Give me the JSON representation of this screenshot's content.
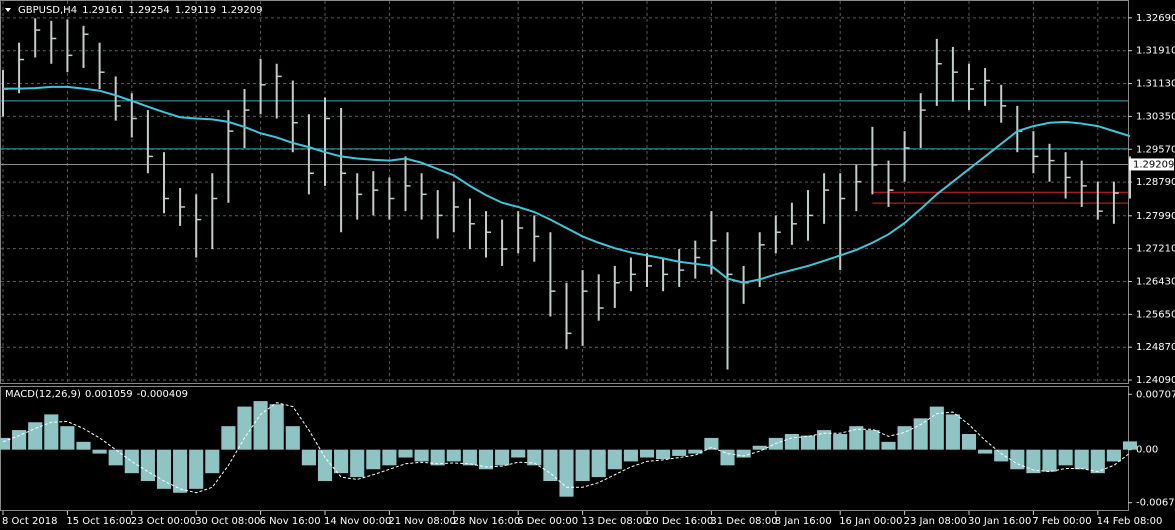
{
  "chart_data": [
    {
      "type": "ohlc",
      "title": "GBPUSD,H4",
      "ohlc": [
        1.29161,
        1.29254,
        1.29119,
        1.29209
      ],
      "categories": [
        "8 Oct 2018",
        null,
        null,
        null,
        "15 Oct 16:00",
        null,
        null,
        null,
        "23 Oct 00:00",
        null,
        null,
        null,
        "30 Oct 08:00",
        null,
        null,
        null,
        "6 Nov 16:00",
        null,
        null,
        null,
        "14 Nov 00:00",
        null,
        null,
        null,
        "21 Nov 08:00",
        null,
        null,
        null,
        "28 Nov 16:00",
        null,
        null,
        null,
        "6 Dec 00:00",
        null,
        null,
        null,
        "13 Dec 08:00",
        null,
        null,
        null,
        "20 Dec 16:00",
        null,
        null,
        null,
        "31 Dec 08:00",
        null,
        null,
        null,
        "8 Jan 16:00",
        null,
        null,
        null,
        "16 Jan 00:00",
        null,
        null,
        null,
        "23 Jan 08:00",
        null,
        null,
        null,
        "30 Jan 16:00",
        null,
        null,
        null,
        "7 Feb 00:00",
        null,
        null,
        null,
        "14 Feb 08:00",
        null,
        null
      ],
      "high": [
        1.3145,
        1.321,
        1.3268,
        1.3262,
        1.3265,
        1.325,
        1.321,
        1.313,
        1.309,
        1.305,
        1.295,
        1.2865,
        1.285,
        1.29,
        1.305,
        1.31,
        1.3172,
        1.316,
        1.312,
        1.304,
        1.308,
        1.3055,
        1.29,
        1.2905,
        1.289,
        1.294,
        1.29,
        1.286,
        1.288,
        1.284,
        1.281,
        1.279,
        1.281,
        1.28,
        1.276,
        1.264,
        1.267,
        1.266,
        1.268,
        1.27,
        1.271,
        1.27,
        1.272,
        1.274,
        1.281,
        1.276,
        1.268,
        1.276,
        1.28,
        1.283,
        1.286,
        1.29,
        1.29,
        1.292,
        1.301,
        1.293,
        1.3,
        1.309,
        1.3219,
        1.32,
        1.316,
        1.315,
        1.311,
        1.306,
        1.3,
        1.297,
        1.295,
        1.293,
        1.288,
        1.288,
        1.294
      ],
      "low": [
        1.3035,
        1.309,
        1.3175,
        1.316,
        1.314,
        1.315,
        1.31,
        1.3025,
        1.2985,
        1.29,
        1.2805,
        1.2775,
        1.27,
        1.272,
        1.283,
        1.296,
        1.304,
        1.303,
        1.295,
        1.285,
        1.287,
        1.276,
        1.279,
        1.28,
        1.279,
        1.281,
        1.279,
        1.2745,
        1.276,
        1.272,
        1.27,
        1.268,
        1.271,
        1.269,
        1.256,
        1.2482,
        1.249,
        1.255,
        1.258,
        1.262,
        1.263,
        1.262,
        1.263,
        1.265,
        1.266,
        1.2434,
        1.259,
        1.263,
        1.271,
        1.273,
        1.274,
        1.278,
        1.267,
        1.281,
        1.285,
        1.282,
        1.288,
        1.296,
        1.306,
        1.307,
        1.305,
        1.306,
        1.302,
        1.295,
        1.29,
        1.288,
        1.284,
        1.282,
        1.279,
        1.278,
        1.284
      ],
      "close": [
        1.31,
        1.317,
        1.324,
        1.322,
        1.318,
        1.323,
        1.314,
        1.306,
        1.303,
        1.294,
        1.284,
        1.282,
        1.279,
        1.284,
        1.3,
        1.305,
        1.311,
        1.313,
        1.302,
        1.29,
        1.303,
        1.29,
        1.285,
        1.286,
        1.284,
        1.287,
        1.285,
        1.28,
        1.282,
        1.278,
        1.276,
        1.272,
        1.277,
        1.275,
        1.262,
        1.252,
        1.262,
        1.258,
        1.264,
        1.266,
        1.268,
        1.266,
        1.267,
        1.27,
        1.274,
        1.266,
        1.264,
        1.273,
        1.276,
        1.278,
        1.28,
        1.286,
        1.284,
        1.288,
        1.292,
        1.286,
        1.296,
        1.305,
        1.316,
        1.314,
        1.31,
        1.312,
        1.306,
        1.3,
        1.294,
        1.293,
        1.289,
        1.287,
        1.281,
        1.2853,
        1.29209
      ],
      "bar_color": "#c4cccc",
      "ma": {
        "color": "#3cc8d8",
        "values": [
          1.3101,
          1.3101,
          1.3102,
          1.3105,
          1.3105,
          1.3101,
          1.3096,
          1.3085,
          1.3072,
          1.3058,
          1.3045,
          1.3033,
          1.303,
          1.3028,
          1.3022,
          1.301,
          1.2995,
          1.2985,
          1.2972,
          1.2962,
          1.295,
          1.294,
          1.2935,
          1.2932,
          1.293,
          1.2935,
          1.2925,
          1.291,
          1.2895,
          1.287,
          1.2848,
          1.283,
          1.282,
          1.2808,
          1.279,
          1.277,
          1.275,
          1.2735,
          1.2722,
          1.2712,
          1.2705,
          1.2698,
          1.269,
          1.2685,
          1.268,
          1.265,
          1.264,
          1.2648,
          1.266,
          1.267,
          1.268,
          1.2692,
          1.2705,
          1.2718,
          1.2735,
          1.2755,
          1.2782,
          1.2815,
          1.285,
          1.288,
          1.291,
          1.294,
          1.297,
          1.3,
          1.3012,
          1.302,
          1.3022,
          1.3018,
          1.3012,
          1.3,
          1.2988
        ]
      },
      "hlines": [
        {
          "value": 1.3072,
          "color": "#3fa7b5"
        },
        {
          "value": 1.2958,
          "color": "#3fa7b5"
        },
        {
          "value": 1.2855,
          "color": "#e02020"
        },
        {
          "value": 1.2829,
          "color": "#e02020"
        }
      ],
      "ylim": [
        1.2402,
        1.3309
      ],
      "yticks": [
        {
          "value": 1.3269,
          "label": "1.32690"
        },
        {
          "value": 1.3191,
          "label": "1.31910"
        },
        {
          "value": 1.3113,
          "label": "1.31130"
        },
        {
          "value": 1.3035,
          "label": "1.30350"
        },
        {
          "value": 1.2957,
          "label": "1.29570"
        },
        {
          "value": 1.2879,
          "label": "1.28790"
        },
        {
          "value": 1.2799,
          "label": "1.27990"
        },
        {
          "value": 1.2721,
          "label": "1.27210"
        },
        {
          "value": 1.2643,
          "label": "1.26430"
        },
        {
          "value": 1.2565,
          "label": "1.25650"
        },
        {
          "value": 1.2487,
          "label": "1.24870"
        },
        {
          "value": 1.2409,
          "label": "1.24090"
        }
      ],
      "grid": true
    },
    {
      "type": "macd",
      "title": "MACD(12,26,9)",
      "series": [
        {
          "color": "#8fc4c4",
          "values": [
            0.0015,
            0.0025,
            0.0035,
            0.0045,
            0.003,
            0.001,
            -0.0005,
            -0.002,
            -0.003,
            -0.004,
            -0.005,
            -0.0055,
            -0.005,
            -0.003,
            0.003,
            0.0055,
            0.0062,
            0.0058,
            0.003,
            -0.002,
            -0.004,
            -0.003,
            -0.0035,
            -0.0025,
            -0.002,
            -0.001,
            -0.0015,
            -0.002,
            -0.0015,
            -0.002,
            -0.0025,
            -0.002,
            -0.001,
            -0.002,
            -0.004,
            -0.006,
            -0.004,
            -0.0035,
            -0.0025,
            -0.0015,
            -0.001,
            -0.0012,
            -0.0008,
            -0.0005,
            0.0015,
            -0.002,
            -0.001,
            0.0005,
            0.0015,
            0.002,
            0.0018,
            0.0025,
            0.002,
            0.003,
            0.0025,
            0.001,
            0.003,
            0.004,
            0.0055,
            0.0045,
            0.002,
            -0.0005,
            -0.0015,
            -0.0025,
            -0.003,
            -0.0028,
            -0.002,
            -0.0025,
            -0.003,
            -0.0015,
            0.001059
          ]
        },
        {
          "color": "#ffffff",
          "values": [
            0.001,
            0.0018,
            0.0027,
            0.0035,
            0.0036,
            0.0027,
            0.0015,
            0,
            -0.0015,
            -0.0028,
            -0.004,
            -0.005,
            -0.0055,
            -0.0048,
            -0.002,
            0.0015,
            0.0045,
            0.006,
            0.0055,
            0.0025,
            -0.001,
            -0.0035,
            -0.0038,
            -0.0032,
            -0.0025,
            -0.0018,
            -0.0016,
            -0.0018,
            -0.0017,
            -0.0018,
            -0.0022,
            -0.0021,
            -0.0016,
            -0.0017,
            -0.003,
            -0.0048,
            -0.0048,
            -0.0042,
            -0.0032,
            -0.0022,
            -0.0015,
            -0.0013,
            -0.001,
            -0.0007,
            0.0003,
            -0.0005,
            -0.0008,
            -0.0002,
            0.0008,
            0.0015,
            0.0017,
            0.0021,
            0.0021,
            0.0026,
            0.0026,
            0.0017,
            0.0022,
            0.0032,
            0.0046,
            0.0048,
            0.0032,
            0.0012,
            -0.0005,
            -0.0018,
            -0.0026,
            -0.0028,
            -0.0024,
            -0.0024,
            -0.0028,
            -0.002,
            -0.000409
          ]
        }
      ],
      "ylim": [
        -0.0077,
        0.008
      ],
      "yticks": [
        0.007071,
        {
          "value": 0,
          "label": "0.00"
        },
        -0.006772
      ]
    }
  ]
}
